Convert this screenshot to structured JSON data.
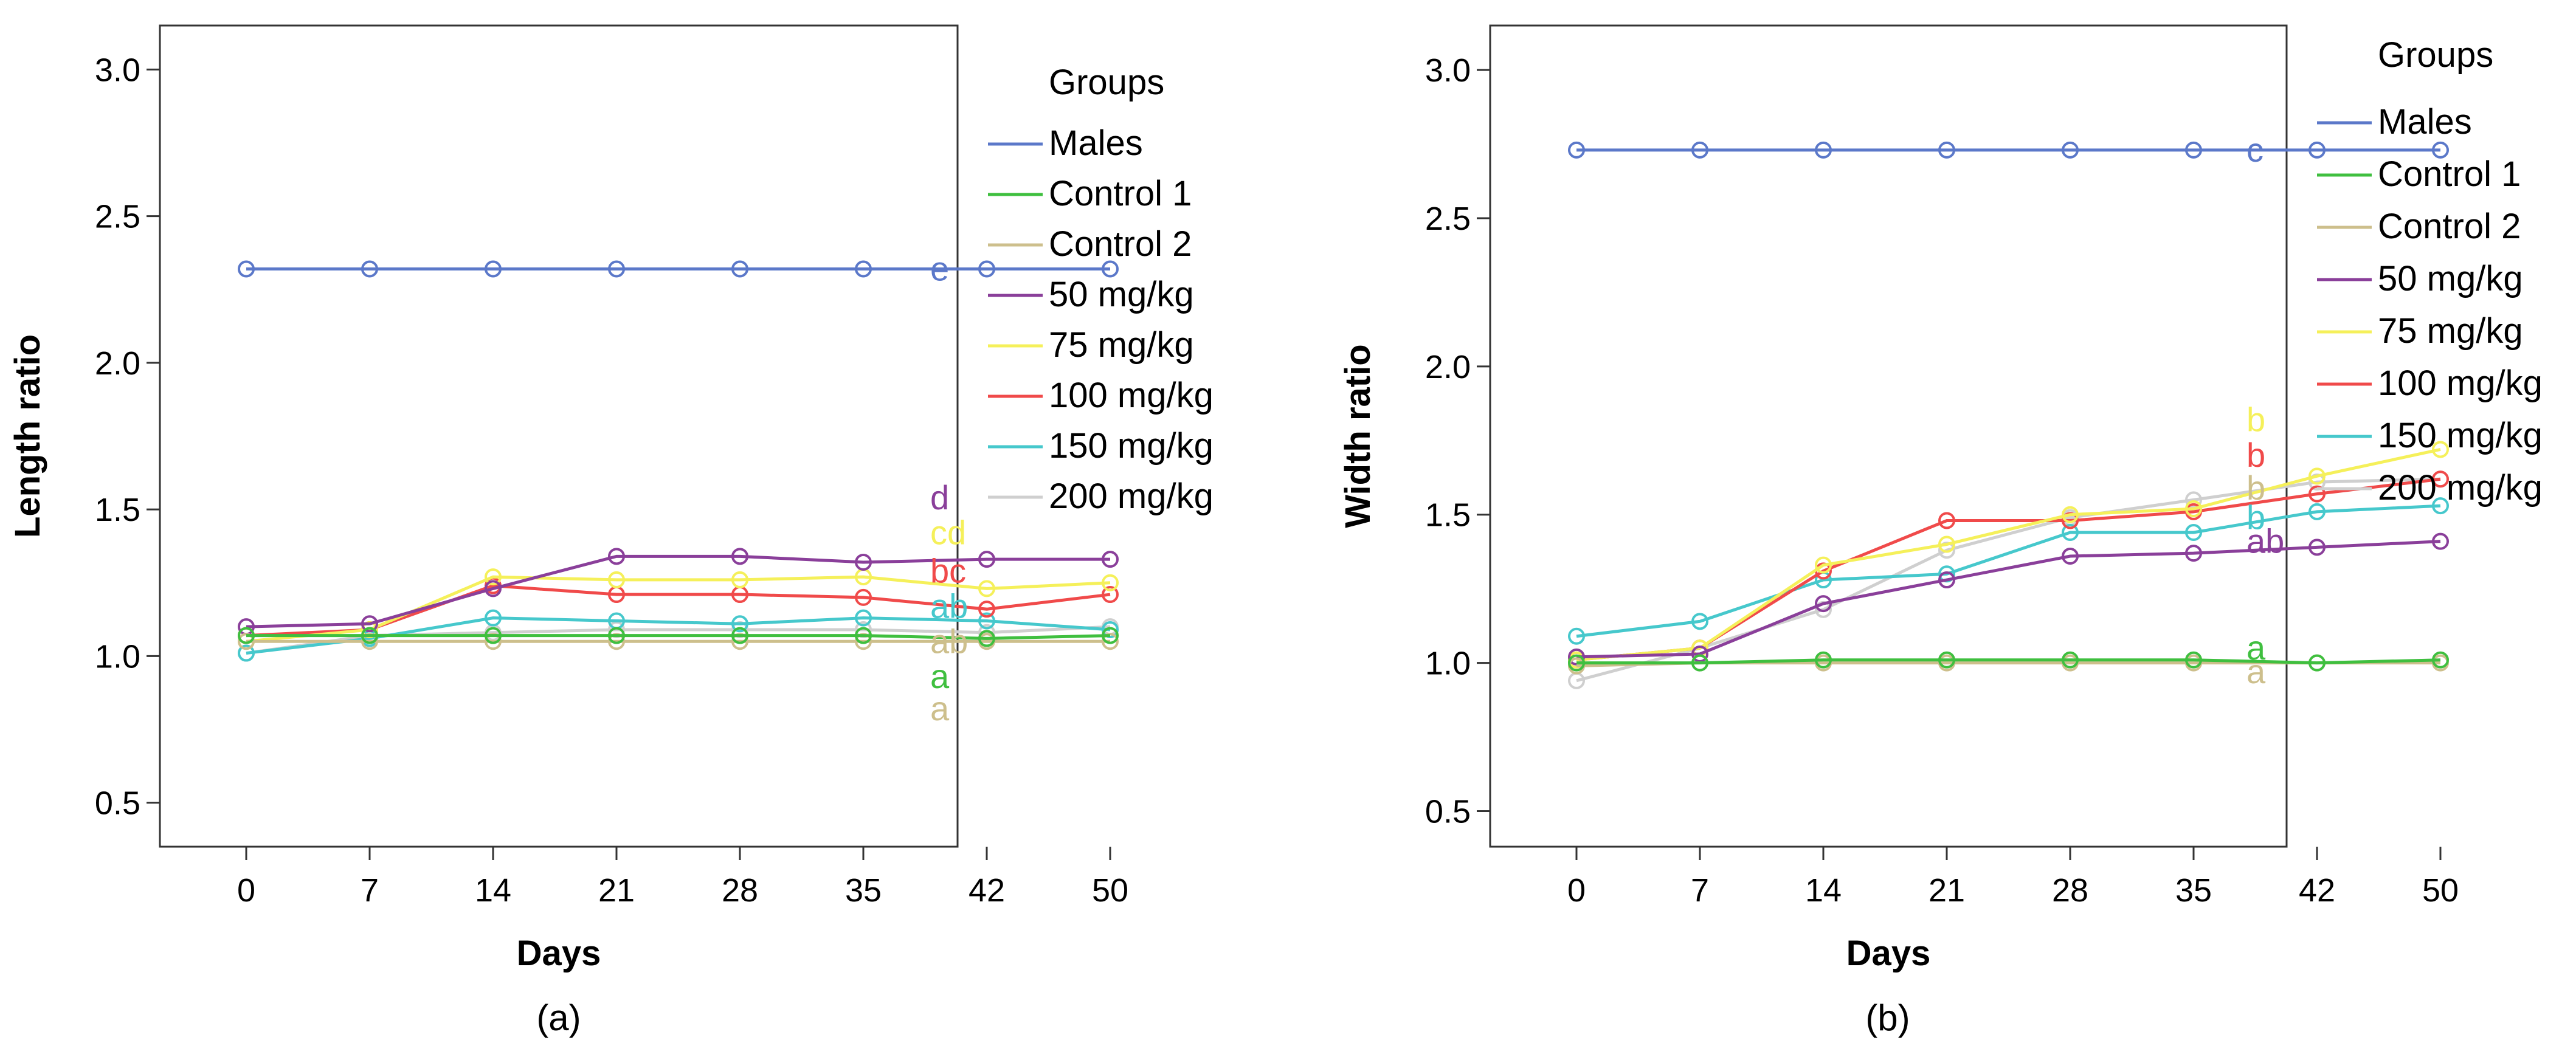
{
  "colors": {
    "Males": "#5b78c9",
    "Control 1": "#3fbf3f",
    "Control 2": "#cdbf8c",
    "50 mg/kg": "#8a3f9a",
    "75 mg/kg": "#f5f05a",
    "100 mg/kg": "#f04a4a",
    "150 mg/kg": "#46c8cc",
    "200 mg/kg": "#cfcfcf"
  },
  "chart_data": [
    {
      "type": "line",
      "caption": "(a)",
      "xlabel": "Days",
      "ylabel": "Length ratio",
      "legend_title": "Groups",
      "legend_position": "right",
      "x": [
        0,
        7,
        14,
        21,
        28,
        35,
        42,
        50
      ],
      "x_tick_labels": [
        "0",
        "7",
        "14",
        "21",
        "28",
        "35",
        "42",
        "50"
      ],
      "ylim": [
        0.35,
        3.15
      ],
      "y_ticks": [
        0.5,
        1.0,
        1.5,
        2.0,
        2.5,
        3.0
      ],
      "y_tick_labels": [
        "0.5",
        "1.0",
        "1.5",
        "2.0",
        "2.5",
        "3.0"
      ],
      "series": [
        {
          "name": "Males",
          "values": [
            2.32,
            2.32,
            2.32,
            2.32,
            2.32,
            2.32,
            2.32,
            2.32
          ]
        },
        {
          "name": "Control 1",
          "values": [
            1.07,
            1.07,
            1.07,
            1.07,
            1.07,
            1.07,
            1.06,
            1.07
          ]
        },
        {
          "name": "Control 2",
          "values": [
            1.05,
            1.05,
            1.05,
            1.05,
            1.05,
            1.05,
            1.05,
            1.05
          ]
        },
        {
          "name": "50 mg/kg",
          "values": [
            1.1,
            1.11,
            1.23,
            1.34,
            1.34,
            1.32,
            1.33,
            1.33
          ]
        },
        {
          "name": "75 mg/kg",
          "values": [
            1.05,
            1.09,
            1.27,
            1.26,
            1.26,
            1.27,
            1.23,
            1.25
          ]
        },
        {
          "name": "100 mg/kg",
          "values": [
            1.07,
            1.09,
            1.24,
            1.21,
            1.21,
            1.2,
            1.16,
            1.21
          ]
        },
        {
          "name": "150 mg/kg",
          "values": [
            1.01,
            1.06,
            1.13,
            1.12,
            1.11,
            1.13,
            1.12,
            1.09
          ]
        },
        {
          "name": "200 mg/kg",
          "values": [
            1.01,
            1.07,
            1.08,
            1.09,
            1.09,
            1.09,
            1.08,
            1.1
          ]
        }
      ],
      "annotations": [
        {
          "text": "e",
          "series": "Males",
          "y": 2.32
        },
        {
          "text": "d",
          "series": "50 mg/kg",
          "y": 1.54
        },
        {
          "text": "cd",
          "series": "75 mg/kg",
          "y": 1.42
        },
        {
          "text": "bc",
          "series": "100 mg/kg",
          "y": 1.29
        },
        {
          "text": "ab",
          "series": "150 mg/kg",
          "y": 1.17
        },
        {
          "text": "ab",
          "series": "Control 2",
          "y": 1.05
        },
        {
          "text": "a",
          "series": "Control 1",
          "y": 0.93
        },
        {
          "text": "a",
          "series": "Control 2",
          "y": 0.82
        }
      ]
    },
    {
      "type": "line",
      "caption": "(b)",
      "xlabel": "Days",
      "ylabel": "Width ratio",
      "legend_title": "Groups",
      "legend_position": "right",
      "x": [
        0,
        7,
        14,
        21,
        28,
        35,
        42,
        50
      ],
      "x_tick_labels": [
        "0",
        "7",
        "14",
        "21",
        "28",
        "35",
        "42",
        "50"
      ],
      "ylim": [
        0.38,
        3.15
      ],
      "y_ticks": [
        0.5,
        1.0,
        1.5,
        2.0,
        2.5,
        3.0
      ],
      "y_tick_labels": [
        "0.5",
        "1.0",
        "1.5",
        "2.0",
        "2.5",
        "3.0"
      ],
      "series": [
        {
          "name": "Males",
          "values": [
            2.73,
            2.73,
            2.73,
            2.73,
            2.73,
            2.73,
            2.73,
            2.73
          ]
        },
        {
          "name": "Control 1",
          "values": [
            1.0,
            1.0,
            1.01,
            1.01,
            1.01,
            1.01,
            1.0,
            1.01
          ]
        },
        {
          "name": "Control 2",
          "values": [
            0.99,
            1.0,
            1.0,
            1.0,
            1.0,
            1.0,
            1.0,
            1.0
          ]
        },
        {
          "name": "50 mg/kg",
          "values": [
            1.02,
            1.03,
            1.2,
            1.28,
            1.36,
            1.37,
            1.39,
            1.41
          ]
        },
        {
          "name": "75 mg/kg",
          "values": [
            1.01,
            1.05,
            1.33,
            1.4,
            1.5,
            1.52,
            1.63,
            1.72
          ]
        },
        {
          "name": "100 mg/kg",
          "values": [
            1.01,
            1.05,
            1.31,
            1.48,
            1.48,
            1.51,
            1.57,
            1.62
          ]
        },
        {
          "name": "150 mg/kg",
          "values": [
            1.09,
            1.14,
            1.28,
            1.3,
            1.44,
            1.44,
            1.51,
            1.53
          ]
        },
        {
          "name": "200 mg/kg",
          "values": [
            0.94,
            1.05,
            1.18,
            1.38,
            1.49,
            1.55,
            1.61,
            1.62
          ]
        }
      ],
      "annotations": [
        {
          "text": "c",
          "series": "Males",
          "y": 2.73
        },
        {
          "text": "b",
          "series": "75 mg/kg",
          "y": 1.82
        },
        {
          "text": "b",
          "series": "100 mg/kg",
          "y": 1.7
        },
        {
          "text": "b",
          "series": "Control 2",
          "y": 1.59
        },
        {
          "text": "b",
          "series": "150 mg/kg",
          "y": 1.49
        },
        {
          "text": "ab",
          "series": "50 mg/kg",
          "y": 1.41
        },
        {
          "text": "a",
          "series": "Control 1",
          "y": 1.05
        },
        {
          "text": "a",
          "series": "Control 2",
          "y": 0.97
        }
      ]
    }
  ]
}
